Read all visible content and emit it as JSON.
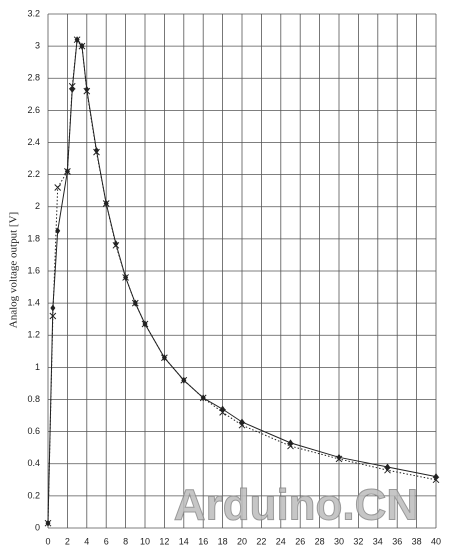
{
  "chart_data": {
    "type": "line",
    "y_label": "Analog voltage output [V]",
    "watermark": "Arduino.CN",
    "x": [
      0,
      0.5,
      1,
      2,
      2.5,
      3,
      3.5,
      4,
      5,
      6,
      7,
      8,
      9,
      10,
      12,
      14,
      16,
      18,
      20,
      25,
      30,
      35,
      40
    ],
    "series": [
      {
        "color": "#222222",
        "line_style": "solid",
        "marker": "diamond",
        "values": [
          0.03,
          1.37,
          1.85,
          2.22,
          2.73,
          3.04,
          3.0,
          2.73,
          2.35,
          2.02,
          1.77,
          1.56,
          1.4,
          1.27,
          1.06,
          0.92,
          0.81,
          0.74,
          0.66,
          0.53,
          0.44,
          0.38,
          0.32
        ]
      },
      {
        "color": "#222222",
        "line_style": "dotted",
        "marker": "x",
        "values": [
          0.03,
          1.32,
          2.12,
          2.22,
          2.75,
          3.04,
          3.0,
          2.72,
          2.34,
          2.02,
          1.76,
          1.56,
          1.4,
          1.27,
          1.06,
          0.92,
          0.81,
          0.72,
          0.64,
          0.51,
          0.43,
          0.36,
          0.3
        ]
      }
    ],
    "xlim": [
      0,
      40
    ],
    "xticks": [
      0,
      2,
      4,
      6,
      8,
      10,
      12,
      14,
      16,
      18,
      20,
      22,
      24,
      26,
      28,
      30,
      32,
      34,
      36,
      38,
      40
    ],
    "ylim": [
      0,
      3.2
    ],
    "yticks": [
      0,
      0.2,
      0.4,
      0.6,
      0.8,
      1,
      1.2,
      1.4,
      1.6,
      1.8,
      2,
      2.2,
      2.4,
      2.6,
      2.8,
      3,
      3.2
    ],
    "grid": true
  }
}
